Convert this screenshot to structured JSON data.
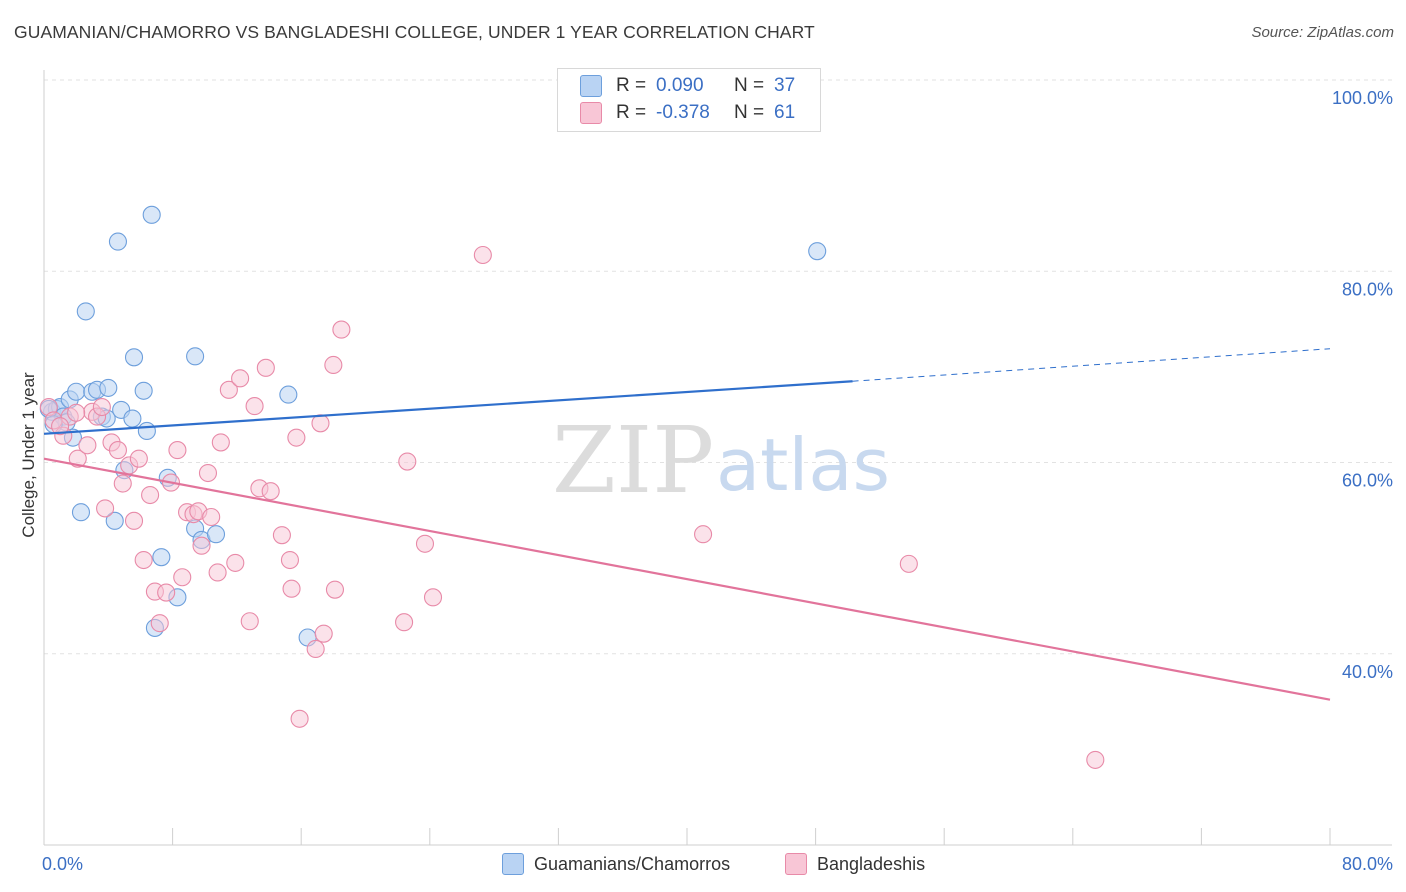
{
  "title": "GUAMANIAN/CHAMORRO VS BANGLADESHI COLLEGE, UNDER 1 YEAR CORRELATION CHART",
  "source": "Source: ZipAtlas.com",
  "watermark": {
    "zip": "ZIP",
    "atlas": "atlas"
  },
  "legend_top": {
    "rows": [
      {
        "r_label": "R =",
        "r_value": "0.090",
        "n_label": "N =",
        "n_value": "37",
        "color_fill": "#b9d3f3",
        "color_stroke": "#6d9fdc"
      },
      {
        "r_label": "R =",
        "r_value": "-0.378",
        "n_label": "N =",
        "n_value": "61",
        "color_fill": "#f8c6d6",
        "color_stroke": "#e88aa8"
      }
    ]
  },
  "legend_bottom": [
    {
      "label": "Guamanians/Chamorros",
      "color_fill": "#b9d3f3",
      "color_stroke": "#6d9fdc"
    },
    {
      "label": "Bangladeshis",
      "color_fill": "#f8c6d6",
      "color_stroke": "#e88aa8"
    }
  ],
  "chart_data": {
    "type": "scatter",
    "title": "GUAMANIAN/CHAMORRO VS BANGLADESHI COLLEGE, UNDER 1 YEAR CORRELATION CHART",
    "xlabel": "",
    "ylabel": "College, Under 1 year",
    "xlim": [
      0,
      80
    ],
    "ylim": [
      20,
      100
    ],
    "x_tick_labels": [
      "0.0%",
      "80.0%"
    ],
    "y_ticks": [
      40,
      60,
      80,
      100
    ],
    "y_tick_labels": [
      "40.0%",
      "60.0%",
      "80.0%",
      "100.0%"
    ],
    "grid": true,
    "series": [
      {
        "name": "Guamanians/Chamorros",
        "color": "#6d9fdc",
        "line_color": "#2f6fcc",
        "trend": {
          "x0": 0,
          "y0": 63.0,
          "x1": 50.3,
          "y1": 68.5,
          "dash_to_x": 80,
          "dash_to_y": 71.9
        },
        "points": [
          [
            0.5,
            65.3
          ],
          [
            0.8,
            65.6
          ],
          [
            1.0,
            65.8
          ],
          [
            1.2,
            64.8
          ],
          [
            1.4,
            64.2
          ],
          [
            1.6,
            66.6
          ],
          [
            1.8,
            62.6
          ],
          [
            2.0,
            67.4
          ],
          [
            2.3,
            54.8
          ],
          [
            2.6,
            75.8
          ],
          [
            3.0,
            67.4
          ],
          [
            3.3,
            67.6
          ],
          [
            3.6,
            64.8
          ],
          [
            3.9,
            64.6
          ],
          [
            4.0,
            67.8
          ],
          [
            4.4,
            53.9
          ],
          [
            4.6,
            83.1
          ],
          [
            4.8,
            65.5
          ],
          [
            5.0,
            59.2
          ],
          [
            5.5,
            64.6
          ],
          [
            5.6,
            71.0
          ],
          [
            6.2,
            67.5
          ],
          [
            6.4,
            63.3
          ],
          [
            6.7,
            85.9
          ],
          [
            6.9,
            42.7
          ],
          [
            7.3,
            50.1
          ],
          [
            7.7,
            58.4
          ],
          [
            8.3,
            45.9
          ],
          [
            9.4,
            71.1
          ],
          [
            9.4,
            53.1
          ],
          [
            9.8,
            51.9
          ],
          [
            10.7,
            52.5
          ],
          [
            15.2,
            67.1
          ],
          [
            16.4,
            41.7
          ],
          [
            48.1,
            82.1
          ],
          [
            0.3,
            65.6
          ],
          [
            0.6,
            64.0
          ]
        ]
      },
      {
        "name": "Bangladeshis",
        "color": "#e88aa8",
        "line_color": "#e2749b",
        "trend": {
          "x0": 0,
          "y0": 60.4,
          "x1": 80,
          "y1": 35.2
        },
        "points": [
          [
            0.3,
            65.8
          ],
          [
            0.6,
            64.4
          ],
          [
            1.2,
            62.8
          ],
          [
            1.6,
            64.8
          ],
          [
            2.1,
            60.4
          ],
          [
            2.7,
            61.8
          ],
          [
            3.0,
            65.3
          ],
          [
            3.3,
            64.8
          ],
          [
            3.6,
            65.8
          ],
          [
            3.8,
            55.2
          ],
          [
            4.2,
            62.1
          ],
          [
            4.6,
            61.3
          ],
          [
            4.9,
            57.8
          ],
          [
            5.3,
            59.7
          ],
          [
            5.6,
            53.9
          ],
          [
            5.9,
            60.4
          ],
          [
            6.2,
            49.8
          ],
          [
            6.6,
            56.6
          ],
          [
            6.9,
            46.5
          ],
          [
            7.2,
            43.2
          ],
          [
            7.6,
            46.4
          ],
          [
            7.9,
            57.9
          ],
          [
            8.3,
            61.3
          ],
          [
            8.6,
            48.0
          ],
          [
            8.9,
            54.8
          ],
          [
            9.3,
            54.6
          ],
          [
            9.6,
            54.9
          ],
          [
            9.8,
            51.3
          ],
          [
            10.2,
            58.9
          ],
          [
            10.4,
            54.3
          ],
          [
            10.8,
            48.5
          ],
          [
            11.0,
            62.1
          ],
          [
            11.5,
            67.6
          ],
          [
            11.9,
            49.5
          ],
          [
            12.2,
            68.8
          ],
          [
            12.8,
            43.4
          ],
          [
            13.1,
            65.9
          ],
          [
            13.4,
            57.3
          ],
          [
            13.8,
            69.9
          ],
          [
            14.1,
            57.0
          ],
          [
            14.8,
            52.4
          ],
          [
            15.3,
            49.8
          ],
          [
            15.4,
            46.8
          ],
          [
            15.7,
            62.6
          ],
          [
            15.9,
            33.2
          ],
          [
            16.9,
            40.5
          ],
          [
            17.2,
            64.1
          ],
          [
            17.4,
            42.1
          ],
          [
            18.1,
            46.7
          ],
          [
            18.5,
            73.9
          ],
          [
            18.0,
            70.2
          ],
          [
            22.4,
            43.3
          ],
          [
            22.6,
            60.1
          ],
          [
            23.7,
            51.5
          ],
          [
            24.2,
            45.9
          ],
          [
            27.3,
            81.7
          ],
          [
            41.0,
            52.5
          ],
          [
            53.8,
            49.4
          ],
          [
            65.4,
            28.9
          ],
          [
            2.0,
            65.2
          ],
          [
            1.0,
            63.8
          ]
        ]
      }
    ]
  }
}
